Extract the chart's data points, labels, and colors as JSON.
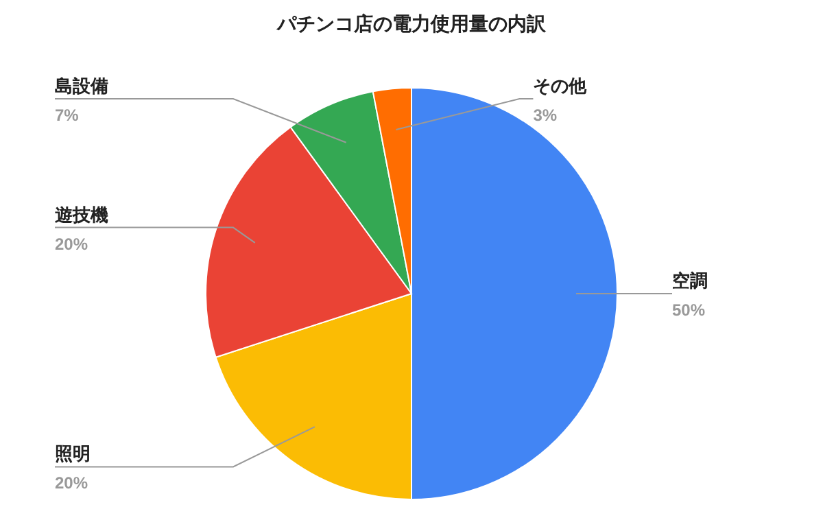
{
  "chart_data": {
    "type": "pie",
    "title": "パチンコ店の電力使用量の内訳",
    "categories": [
      "空調",
      "照明",
      "遊技機",
      "島設備",
      "その他"
    ],
    "values": [
      50,
      20,
      20,
      7,
      3
    ],
    "colors": [
      "#4285f4",
      "#fbbc04",
      "#ea4335",
      "#34a853",
      "#ff6d01"
    ],
    "value_labels": [
      "50%",
      "20%",
      "20%",
      "7%",
      "3%"
    ]
  }
}
